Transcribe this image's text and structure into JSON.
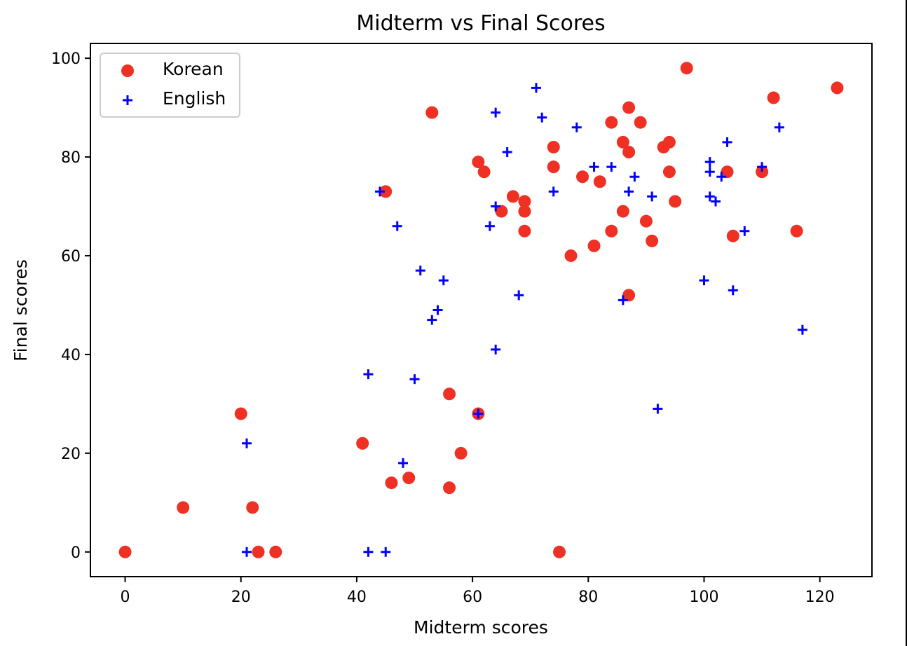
{
  "chart_data": {
    "type": "scatter",
    "title": "Midterm vs Final Scores",
    "xlabel": "Midterm scores",
    "ylabel": "Final scores",
    "xlim": [
      -6,
      129
    ],
    "ylim": [
      -5,
      103
    ],
    "xticks": [
      0,
      20,
      40,
      60,
      80,
      100,
      120
    ],
    "yticks": [
      0,
      20,
      40,
      60,
      80,
      100
    ],
    "xtick_labels": [
      "0",
      "20",
      "40",
      "60",
      "80",
      "100",
      "120"
    ],
    "ytick_labels": [
      "0",
      "20",
      "40",
      "60",
      "80",
      "100"
    ],
    "grid": false,
    "legend_position": "top-left",
    "series": [
      {
        "name": "Korean",
        "marker": "circle",
        "color": "#ee3124",
        "points": [
          [
            0,
            0
          ],
          [
            10,
            9
          ],
          [
            20,
            28
          ],
          [
            22,
            9
          ],
          [
            23,
            0
          ],
          [
            26,
            0
          ],
          [
            41,
            22
          ],
          [
            45,
            73
          ],
          [
            46,
            14
          ],
          [
            49,
            15
          ],
          [
            53,
            89
          ],
          [
            56,
            32
          ],
          [
            56,
            13
          ],
          [
            58,
            20
          ],
          [
            61,
            79
          ],
          [
            61,
            28
          ],
          [
            62,
            77
          ],
          [
            65,
            69
          ],
          [
            67,
            72
          ],
          [
            69,
            71
          ],
          [
            69,
            69
          ],
          [
            69,
            65
          ],
          [
            74,
            82
          ],
          [
            74,
            78
          ],
          [
            75,
            0
          ],
          [
            77,
            60
          ],
          [
            79,
            76
          ],
          [
            81,
            62
          ],
          [
            82,
            75
          ],
          [
            84,
            87
          ],
          [
            84,
            65
          ],
          [
            86,
            83
          ],
          [
            86,
            69
          ],
          [
            87,
            90
          ],
          [
            87,
            81
          ],
          [
            87,
            52
          ],
          [
            89,
            87
          ],
          [
            90,
            67
          ],
          [
            91,
            63
          ],
          [
            93,
            82
          ],
          [
            94,
            83
          ],
          [
            94,
            77
          ],
          [
            95,
            71
          ],
          [
            97,
            98
          ],
          [
            104,
            77
          ],
          [
            105,
            64
          ],
          [
            110,
            77
          ],
          [
            112,
            92
          ],
          [
            116,
            65
          ],
          [
            123,
            94
          ]
        ]
      },
      {
        "name": "English",
        "marker": "plus",
        "color": "#0000ff",
        "points": [
          [
            21,
            22
          ],
          [
            21,
            0
          ],
          [
            42,
            36
          ],
          [
            42,
            0
          ],
          [
            44,
            73
          ],
          [
            45,
            0
          ],
          [
            47,
            66
          ],
          [
            48,
            18
          ],
          [
            50,
            35
          ],
          [
            51,
            57
          ],
          [
            53,
            47
          ],
          [
            54,
            49
          ],
          [
            55,
            55
          ],
          [
            61,
            28
          ],
          [
            63,
            66
          ],
          [
            64,
            89
          ],
          [
            64,
            70
          ],
          [
            64,
            41
          ],
          [
            66,
            81
          ],
          [
            68,
            52
          ],
          [
            71,
            94
          ],
          [
            72,
            88
          ],
          [
            74,
            73
          ],
          [
            78,
            86
          ],
          [
            81,
            78
          ],
          [
            84,
            78
          ],
          [
            86,
            51
          ],
          [
            87,
            73
          ],
          [
            88,
            76
          ],
          [
            91,
            72
          ],
          [
            92,
            29
          ],
          [
            100,
            55
          ],
          [
            101,
            79
          ],
          [
            101,
            77
          ],
          [
            101,
            72
          ],
          [
            102,
            71
          ],
          [
            103,
            76
          ],
          [
            104,
            83
          ],
          [
            105,
            53
          ],
          [
            107,
            65
          ],
          [
            110,
            78
          ],
          [
            113,
            86
          ],
          [
            117,
            45
          ]
        ]
      }
    ]
  }
}
